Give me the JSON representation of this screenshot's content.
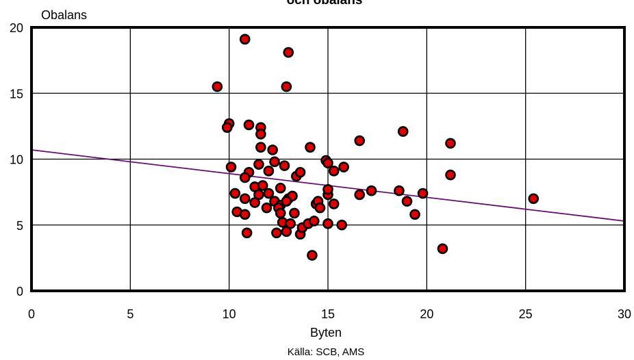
{
  "chart_data": {
    "type": "scatter",
    "title": "och obalans",
    "xlabel": "Byten",
    "ylabel": "Obalans",
    "source": "Källa: SCB, AMS",
    "xlim": [
      0,
      30
    ],
    "ylim": [
      0,
      20
    ],
    "x_ticks": [
      0,
      5,
      10,
      15,
      20,
      25,
      30
    ],
    "y_ticks": [
      0,
      5,
      10,
      15,
      20
    ],
    "grid": true,
    "colors": {
      "points": "#e00000",
      "point_edge": "#000000",
      "trend": "#6a0a78",
      "grid": "#000000"
    },
    "trendline": {
      "x": [
        0,
        30
      ],
      "y": [
        10.7,
        5.3
      ]
    },
    "points": [
      {
        "x": 9.4,
        "y": 15.5
      },
      {
        "x": 10.8,
        "y": 19.1
      },
      {
        "x": 13.0,
        "y": 18.1
      },
      {
        "x": 12.9,
        "y": 15.5
      },
      {
        "x": 10.0,
        "y": 12.7
      },
      {
        "x": 9.9,
        "y": 12.4
      },
      {
        "x": 11.0,
        "y": 12.6
      },
      {
        "x": 11.6,
        "y": 12.4
      },
      {
        "x": 11.6,
        "y": 11.9
      },
      {
        "x": 11.6,
        "y": 10.9
      },
      {
        "x": 12.2,
        "y": 10.7
      },
      {
        "x": 14.1,
        "y": 10.9
      },
      {
        "x": 16.6,
        "y": 11.4
      },
      {
        "x": 18.8,
        "y": 12.1
      },
      {
        "x": 21.2,
        "y": 11.2
      },
      {
        "x": 10.1,
        "y": 9.4
      },
      {
        "x": 11.0,
        "y": 9.0
      },
      {
        "x": 10.8,
        "y": 8.6
      },
      {
        "x": 11.5,
        "y": 9.6
      },
      {
        "x": 12.0,
        "y": 9.1
      },
      {
        "x": 12.3,
        "y": 9.8
      },
      {
        "x": 12.8,
        "y": 9.5
      },
      {
        "x": 13.4,
        "y": 8.7
      },
      {
        "x": 13.6,
        "y": 9.0
      },
      {
        "x": 14.9,
        "y": 9.9
      },
      {
        "x": 15.0,
        "y": 9.7
      },
      {
        "x": 15.3,
        "y": 9.1
      },
      {
        "x": 15.8,
        "y": 9.4
      },
      {
        "x": 21.2,
        "y": 8.8
      },
      {
        "x": 10.3,
        "y": 7.4
      },
      {
        "x": 10.8,
        "y": 7.0
      },
      {
        "x": 11.3,
        "y": 7.9
      },
      {
        "x": 11.5,
        "y": 7.3
      },
      {
        "x": 11.7,
        "y": 8.0
      },
      {
        "x": 12.0,
        "y": 7.4
      },
      {
        "x": 12.3,
        "y": 6.8
      },
      {
        "x": 12.6,
        "y": 7.8
      },
      {
        "x": 12.6,
        "y": 6.5
      },
      {
        "x": 13.0,
        "y": 7.0
      },
      {
        "x": 13.2,
        "y": 7.2
      },
      {
        "x": 15.0,
        "y": 7.3
      },
      {
        "x": 15.0,
        "y": 7.7
      },
      {
        "x": 16.6,
        "y": 7.3
      },
      {
        "x": 17.2,
        "y": 7.6
      },
      {
        "x": 18.6,
        "y": 7.6
      },
      {
        "x": 19.0,
        "y": 6.8
      },
      {
        "x": 19.8,
        "y": 7.4
      },
      {
        "x": 25.4,
        "y": 7.0
      },
      {
        "x": 10.4,
        "y": 6.0
      },
      {
        "x": 10.8,
        "y": 5.8
      },
      {
        "x": 11.3,
        "y": 6.7
      },
      {
        "x": 11.9,
        "y": 6.3
      },
      {
        "x": 12.5,
        "y": 6.3
      },
      {
        "x": 12.6,
        "y": 5.9
      },
      {
        "x": 12.9,
        "y": 6.8
      },
      {
        "x": 13.3,
        "y": 5.9
      },
      {
        "x": 14.4,
        "y": 6.6
      },
      {
        "x": 14.5,
        "y": 6.8
      },
      {
        "x": 14.6,
        "y": 6.3
      },
      {
        "x": 15.3,
        "y": 6.6
      },
      {
        "x": 19.4,
        "y": 5.8
      },
      {
        "x": 10.9,
        "y": 4.4
      },
      {
        "x": 12.4,
        "y": 4.4
      },
      {
        "x": 12.7,
        "y": 5.2
      },
      {
        "x": 12.9,
        "y": 4.5
      },
      {
        "x": 13.1,
        "y": 5.1
      },
      {
        "x": 13.6,
        "y": 4.3
      },
      {
        "x": 13.7,
        "y": 4.8
      },
      {
        "x": 14.0,
        "y": 5.1
      },
      {
        "x": 14.3,
        "y": 5.3
      },
      {
        "x": 15.0,
        "y": 5.1
      },
      {
        "x": 15.7,
        "y": 5.0
      },
      {
        "x": 14.2,
        "y": 2.7
      },
      {
        "x": 20.8,
        "y": 3.2
      }
    ]
  }
}
